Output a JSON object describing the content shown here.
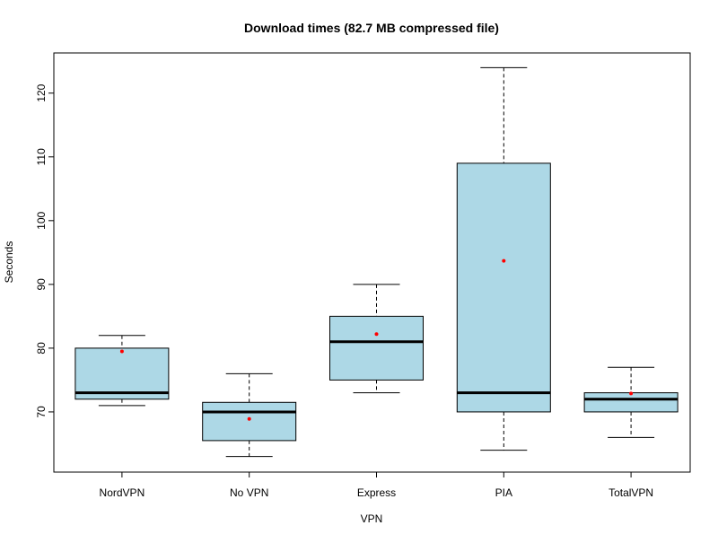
{
  "chart_data": {
    "type": "boxplot",
    "title": "Download times (82.7 MB compressed file)",
    "xlabel": "VPN",
    "ylabel": "Seconds",
    "ylim": [
      60.56,
      126.3
    ],
    "yticks": [
      70,
      80,
      90,
      100,
      110,
      120
    ],
    "categories": [
      "NordVPN",
      "No VPN",
      "Express",
      "PIA",
      "TotalVPN"
    ],
    "boxes": [
      {
        "name": "NordVPN",
        "min": 71,
        "q1": 72,
        "median": 73,
        "q3": 80,
        "max": 82,
        "mean": 79.5
      },
      {
        "name": "No VPN",
        "min": 63,
        "q1": 65.5,
        "median": 70,
        "q3": 71.5,
        "max": 76,
        "mean": 68.9
      },
      {
        "name": "Express",
        "min": 73,
        "q1": 75,
        "median": 81,
        "q3": 85,
        "max": 90,
        "mean": 82.2
      },
      {
        "name": "PIA",
        "min": 64,
        "q1": 70,
        "median": 73,
        "q3": 109,
        "max": 124,
        "mean": 93.7
      },
      {
        "name": "TotalVPN",
        "min": 66,
        "q1": 70,
        "median": 72,
        "q3": 73,
        "max": 77,
        "mean": 72.9
      }
    ],
    "colors": {
      "box_fill": "#add8e6",
      "mean_point": "#ff0000"
    },
    "grid": false
  }
}
